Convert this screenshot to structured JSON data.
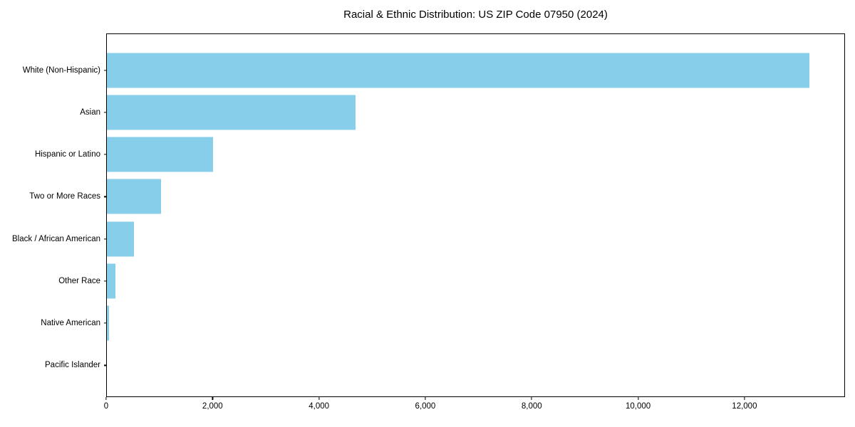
{
  "title": "Racial & Ethnic Distribution: US ZIP Code 07950 (2024)",
  "colors": {
    "bar": "#87CEEB",
    "background": "#ffffff",
    "axis": "#000000",
    "text": "#000000"
  },
  "chart_data": {
    "type": "bar",
    "orientation": "horizontal",
    "title": "Racial & Ethnic Distribution: US ZIP Code 07950 (2024)",
    "xlabel": "",
    "ylabel": "",
    "categories": [
      "White (Non-Hispanic)",
      "Asian",
      "Hispanic or Latino",
      "Two or More Races",
      "Black / African American",
      "Other Race",
      "Native American",
      "Pacific Islander"
    ],
    "values": [
      13230,
      4690,
      2000,
      1020,
      505,
      160,
      40,
      0
    ],
    "xlim": [
      0,
      13890
    ],
    "xticks": [
      0,
      2000,
      4000,
      6000,
      8000,
      10000,
      12000
    ],
    "xtick_labels": [
      "0",
      "2,000",
      "4,000",
      "6,000",
      "8,000",
      "10,000",
      "12,000"
    ],
    "bar_color": "#87CEEB",
    "grid": false,
    "legend": false
  }
}
